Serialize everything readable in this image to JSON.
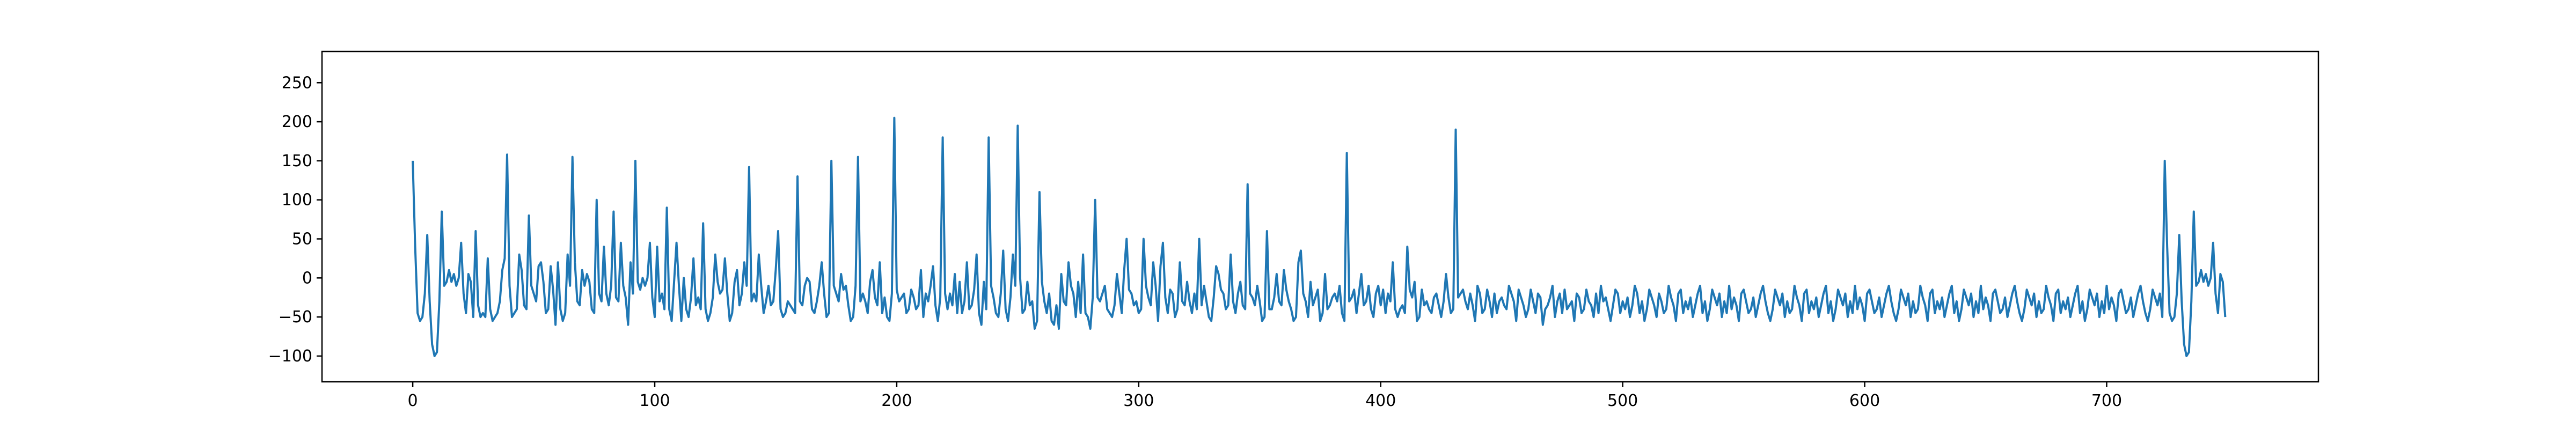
{
  "chart_data": {
    "type": "line",
    "title": "",
    "xlabel": "",
    "ylabel": "",
    "xlim": [
      -37.5,
      787.5
    ],
    "ylim": [
      -133,
      290
    ],
    "x_ticks": [
      0,
      100,
      200,
      300,
      400,
      500,
      600,
      700
    ],
    "y_ticks": [
      -100,
      -50,
      0,
      50,
      100,
      150,
      200,
      250
    ],
    "x_tick_labels": [
      "0",
      "100",
      "200",
      "300",
      "400",
      "500",
      "600",
      "700"
    ],
    "y_tick_labels": [
      "−100",
      "−50",
      "0",
      "50",
      "100",
      "150",
      "200",
      "250"
    ],
    "grid": false,
    "legend": "none",
    "series_color": "#1f77b4",
    "series": [
      {
        "n": 750,
        "x_start": 0,
        "x_step": 1,
        "values": [
          150,
          40,
          -45,
          -55,
          -50,
          -20,
          55,
          -30,
          -85,
          -100,
          -95,
          -30,
          85,
          -10,
          -5,
          10,
          -5,
          5,
          -10,
          0,
          45,
          -20,
          -45,
          5,
          -5,
          -50,
          60,
          -35,
          -50,
          -45,
          -50,
          25,
          -40,
          -55,
          -50,
          -45,
          -30,
          10,
          25,
          158,
          -10,
          -50,
          -45,
          -40,
          30,
          10,
          -35,
          -40,
          80,
          -10,
          -20,
          -30,
          15,
          20,
          -5,
          -45,
          -40,
          15,
          -15,
          -60,
          20,
          -40,
          -55,
          -45,
          30,
          -10,
          155,
          20,
          -30,
          -35,
          10,
          -10,
          5,
          -5,
          -40,
          -45,
          100,
          -20,
          -30,
          40,
          -20,
          -35,
          -10,
          85,
          -25,
          -30,
          45,
          -10,
          -25,
          -60,
          20,
          -20,
          150,
          -5,
          -15,
          0,
          -10,
          0,
          45,
          -25,
          -50,
          40,
          -30,
          -20,
          -40,
          90,
          -40,
          -55,
          -5,
          45,
          -10,
          -55,
          0,
          -40,
          -50,
          -25,
          25,
          -35,
          -25,
          -40,
          70,
          -40,
          -55,
          -45,
          -25,
          30,
          -5,
          -20,
          -15,
          25,
          -20,
          -55,
          -45,
          -5,
          10,
          -35,
          -20,
          20,
          -10,
          142,
          -30,
          -20,
          -30,
          30,
          -10,
          -45,
          -30,
          -10,
          -35,
          -30,
          10,
          60,
          -40,
          -50,
          -45,
          -30,
          -35,
          -40,
          -45,
          130,
          -30,
          -35,
          -10,
          0,
          -5,
          -40,
          -45,
          -30,
          -10,
          20,
          -20,
          -50,
          -45,
          150,
          -10,
          -20,
          -30,
          5,
          -15,
          -10,
          -35,
          -55,
          -50,
          -10,
          155,
          -30,
          -20,
          -30,
          -45,
          -5,
          10,
          -25,
          -35,
          20,
          -45,
          -25,
          -50,
          -55,
          -20,
          205,
          -15,
          -30,
          -25,
          -20,
          -45,
          -40,
          -15,
          -25,
          -40,
          -35,
          10,
          -50,
          -20,
          -30,
          -10,
          15,
          -35,
          -55,
          -25,
          180,
          -20,
          -40,
          -20,
          -35,
          5,
          -45,
          -5,
          -45,
          -30,
          20,
          -40,
          -35,
          -15,
          30,
          -45,
          -60,
          -5,
          -40,
          180,
          -10,
          -25,
          -45,
          -50,
          -20,
          35,
          -40,
          -55,
          -25,
          30,
          -10,
          195,
          0,
          -45,
          -40,
          -5,
          -35,
          -30,
          -65,
          -55,
          110,
          -5,
          -30,
          -45,
          -20,
          -55,
          -60,
          -35,
          -65,
          5,
          -30,
          -35,
          20,
          -10,
          -20,
          -50,
          -5,
          -45,
          30,
          -45,
          -50,
          -65,
          -25,
          100,
          -25,
          -30,
          -20,
          -10,
          -40,
          -45,
          -50,
          -35,
          5,
          -20,
          -45,
          10,
          50,
          -15,
          -20,
          -35,
          -30,
          -45,
          -40,
          50,
          -10,
          -25,
          -35,
          20,
          -10,
          -55,
          15,
          45,
          -25,
          -45,
          -15,
          -20,
          -50,
          -40,
          20,
          -30,
          -35,
          -5,
          -30,
          -45,
          -20,
          -40,
          50,
          -35,
          -10,
          -30,
          -50,
          -55,
          -25,
          15,
          5,
          -15,
          -20,
          -40,
          -35,
          30,
          -30,
          -45,
          -20,
          -5,
          -35,
          -40,
          120,
          -20,
          -25,
          -35,
          -10,
          -30,
          -55,
          -50,
          60,
          -40,
          -40,
          -25,
          5,
          -30,
          -35,
          10,
          -15,
          -30,
          -40,
          -55,
          -50,
          20,
          35,
          -20,
          -30,
          -50,
          -5,
          -35,
          -25,
          -15,
          -55,
          -45,
          5,
          -40,
          -35,
          -25,
          -20,
          -30,
          -10,
          -45,
          -55,
          160,
          -30,
          -25,
          -15,
          -45,
          -20,
          5,
          -35,
          -30,
          -10,
          -40,
          -50,
          -20,
          -10,
          -35,
          -15,
          -45,
          -20,
          -30,
          20,
          -40,
          -50,
          -40,
          -35,
          -45,
          40,
          -15,
          -25,
          -5,
          -55,
          -50,
          -15,
          -35,
          -30,
          -40,
          -45,
          -25,
          -20,
          -35,
          -50,
          -30,
          5,
          -25,
          -45,
          -40,
          190,
          -25,
          -20,
          -15,
          -30,
          -40,
          -20,
          -35,
          -55,
          -10,
          -20,
          -45,
          -40,
          -15,
          -30,
          -50,
          -20,
          -45,
          -30,
          -25,
          -35,
          -40,
          -10,
          -20,
          -30,
          -55,
          -15,
          -25,
          -35,
          -50,
          -40,
          -15,
          -30,
          -45,
          -20,
          -25,
          -60,
          -40,
          -35,
          -25,
          -10,
          -50,
          -30,
          -20,
          -45,
          -15,
          -40,
          -35,
          -30,
          -55,
          -20,
          -25,
          -45,
          -40,
          -15,
          -30,
          -35,
          -50,
          -20,
          -45,
          -10,
          -30,
          -25,
          -40,
          -55,
          -35,
          -15,
          -20,
          -45,
          -30,
          -40,
          -25,
          -50,
          -35,
          -10,
          -20,
          -45,
          -30,
          -55,
          -40,
          -15,
          -25,
          -35,
          -50,
          -20,
          -30,
          -45,
          -40,
          -10,
          -25,
          -35,
          -55,
          -20,
          -15,
          -45,
          -30,
          -40,
          -25,
          -50,
          -35,
          -20,
          -10,
          -45,
          -30,
          -55,
          -40,
          -15,
          -25,
          -35,
          -20,
          -50,
          -30,
          -45,
          -10,
          -40,
          -25,
          -35,
          -55,
          -20,
          -15,
          -30,
          -45,
          -40,
          -25,
          -50,
          -35,
          -20,
          -10,
          -30,
          -45,
          -55,
          -40,
          -15,
          -25,
          -35,
          -20,
          -50,
          -30,
          -45,
          -40,
          -10,
          -25,
          -35,
          -55,
          -20,
          -15,
          -45,
          -30,
          -40,
          -25,
          -50,
          -35,
          -20,
          -10,
          -45,
          -30,
          -55,
          -40,
          -15,
          -25,
          -35,
          -20,
          -50,
          -30,
          -45,
          -10,
          -40,
          -25,
          -35,
          -55,
          -20,
          -15,
          -30,
          -45,
          -40,
          -25,
          -50,
          -35,
          -20,
          -10,
          -30,
          -45,
          -55,
          -40,
          -15,
          -25,
          -35,
          -20,
          -50,
          -30,
          -45,
          -40,
          -10,
          -25,
          -35,
          -55,
          -20,
          -15,
          -45,
          -30,
          -40,
          -25,
          -50,
          -35,
          -20,
          -10,
          -45,
          -30,
          -55,
          -40,
          -15,
          -25,
          -35,
          -20,
          -50,
          -30,
          -45,
          -10,
          -40,
          -25,
          -35,
          -55,
          -20,
          -15,
          -30,
          -45,
          -40,
          -25,
          -50,
          -35,
          -20,
          -10,
          -30,
          -45,
          -55,
          -40,
          -15,
          -25,
          -35,
          -20,
          -50,
          -30,
          -45,
          -40,
          -10,
          -25,
          -35,
          -55,
          -20,
          -15,
          -45,
          -30,
          -40,
          -25,
          -50,
          -35,
          -20,
          -10,
          -45,
          -30,
          -55,
          -40,
          -15,
          -25,
          -35,
          -20,
          -50,
          -30,
          -45,
          -10,
          -40,
          -25,
          -35,
          -55,
          -20,
          -15,
          -30,
          -45,
          -40,
          -25,
          -50,
          -35,
          -20,
          -10,
          -30,
          -45,
          -55,
          -40,
          -15,
          -25,
          -35,
          -20,
          -50
        ]
      }
    ]
  }
}
